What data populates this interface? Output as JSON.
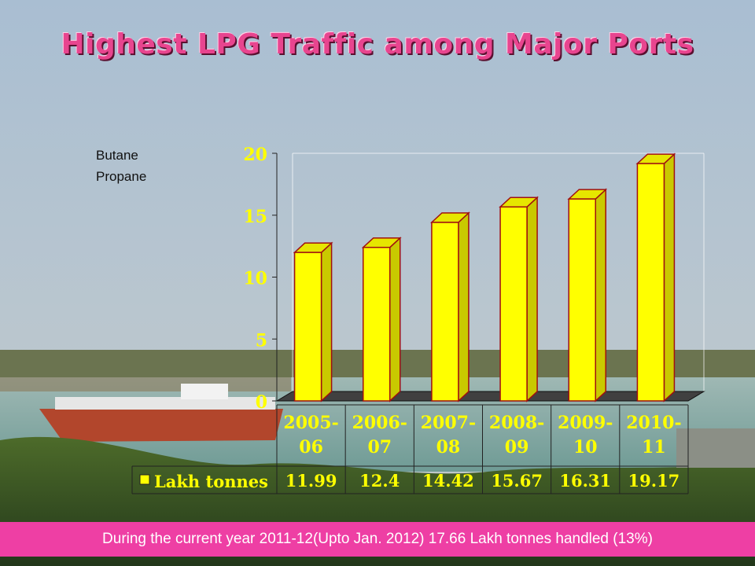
{
  "slide": {
    "title": "Highest LPG Traffic among Major Ports",
    "labels": [
      "Butane",
      "Propane"
    ],
    "footer": "During the current  year 2011-12(Upto Jan. 2012) 17.66 Lakh tonnes  handled (13%)"
  },
  "colors": {
    "bar_front": "#ffff00",
    "bar_side": "#c9c900",
    "bar_outline": "#a01010",
    "axis_text": "#ffff00",
    "title": "#e8458f",
    "footer_bg": "#ee3fa4"
  },
  "chart_data": {
    "type": "bar",
    "categories": [
      "2005-06",
      "2006-07",
      "2007-08",
      "2008-09",
      "2009-10",
      "2010-11"
    ],
    "category_lines": [
      [
        "2005-",
        "06"
      ],
      [
        "2006-",
        "07"
      ],
      [
        "2007-",
        "08"
      ],
      [
        "2008-",
        "09"
      ],
      [
        "2009-",
        "10"
      ],
      [
        "2010-",
        "11"
      ]
    ],
    "series": [
      {
        "name": "Lakh tonnes",
        "values": [
          11.99,
          12.4,
          14.42,
          15.67,
          16.31,
          19.17
        ]
      }
    ],
    "value_labels": [
      "11.99",
      "12.4",
      "14.42",
      "15.67",
      "16.31",
      "19.17"
    ],
    "ylim": [
      0,
      20
    ],
    "yticks": [
      0,
      5,
      10,
      15,
      20
    ],
    "data_table": true,
    "style": "3d-column"
  }
}
